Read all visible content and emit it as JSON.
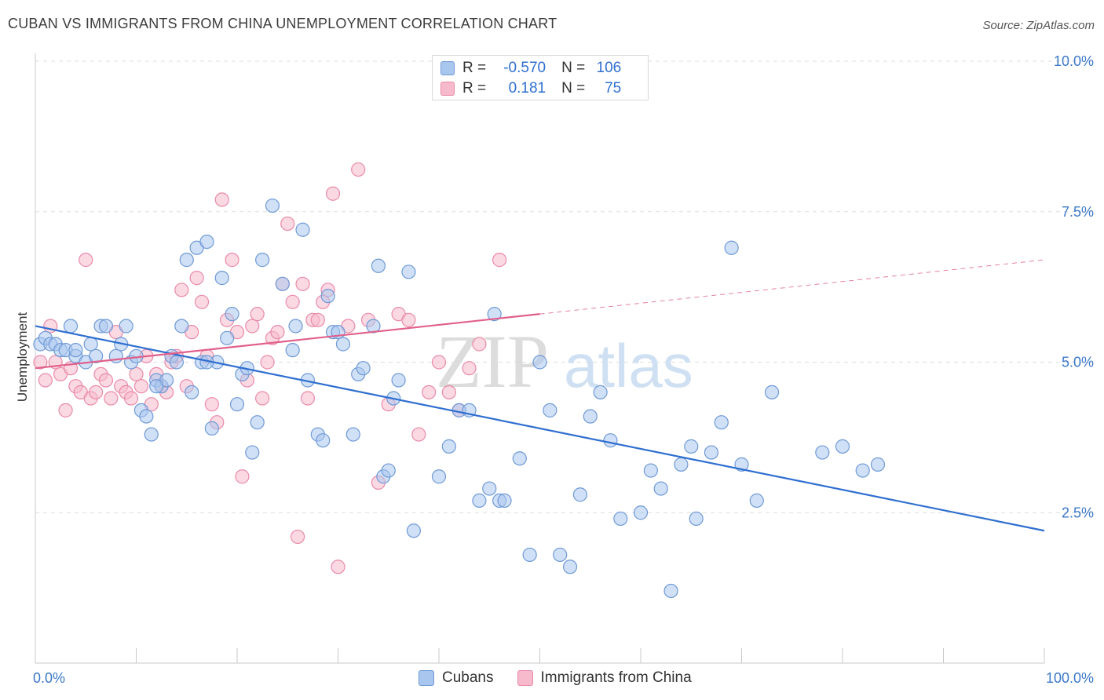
{
  "title": "CUBAN VS IMMIGRANTS FROM CHINA UNEMPLOYMENT CORRELATION CHART",
  "source": "Source: ZipAtlas.com",
  "watermark": {
    "zip": "ZIP",
    "atlas": "atlas"
  },
  "colors": {
    "cubans_fill": "#a9c6ee",
    "cubans_stroke": "#6f9ad6",
    "cubans_line": "#2f6fd0",
    "china_fill": "#f7b9cc",
    "china_stroke": "#e98aa9",
    "china_line": "#e0608c",
    "tick_text": "#3b78c8",
    "grid": "#dddddd"
  },
  "stats": {
    "rows": [
      {
        "series": "Cubans",
        "r_label": "R =",
        "r_value": "-0.570",
        "n_label": "N =",
        "n_value": "106"
      },
      {
        "series": "Immigrants from China",
        "r_label": "R =",
        "r_value": "0.181",
        "n_label": "N =",
        "n_value": "75"
      }
    ]
  },
  "chart_data": {
    "type": "scatter",
    "title": "CUBAN VS IMMIGRANTS FROM CHINA UNEMPLOYMENT CORRELATION CHART",
    "xlabel": "",
    "ylabel": "Unemployment",
    "xlim": [
      0,
      100
    ],
    "ylim": [
      0,
      10
    ],
    "x_tick_labels": [
      "0.0%",
      "100.0%"
    ],
    "y_ticks": [
      2.5,
      5.0,
      7.5,
      10.0
    ],
    "y_tick_labels": [
      "2.5%",
      "5.0%",
      "7.5%",
      "10.0%"
    ],
    "grid": true,
    "legend_position": "bottom-center",
    "series": [
      {
        "name": "Cubans",
        "color": "#a9c6ee",
        "trend": {
          "x": [
            0,
            100
          ],
          "y": [
            5.6,
            2.2
          ],
          "dashed_after": null
        },
        "points": [
          [
            0.5,
            5.3
          ],
          [
            1.0,
            5.4
          ],
          [
            1.5,
            5.3
          ],
          [
            2.0,
            5.3
          ],
          [
            2.5,
            5.2
          ],
          [
            3.0,
            5.2
          ],
          [
            3.5,
            5.6
          ],
          [
            4.0,
            5.1
          ],
          [
            5.0,
            5.0
          ],
          [
            5.5,
            5.3
          ],
          [
            6.0,
            5.1
          ],
          [
            6.5,
            5.6
          ],
          [
            7.0,
            5.6
          ],
          [
            8.0,
            5.1
          ],
          [
            8.5,
            5.3
          ],
          [
            9.0,
            5.6
          ],
          [
            9.5,
            5.0
          ],
          [
            10.0,
            5.1
          ],
          [
            10.5,
            4.2
          ],
          [
            11.0,
            4.1
          ],
          [
            11.5,
            3.8
          ],
          [
            12.0,
            4.7
          ],
          [
            12.5,
            4.6
          ],
          [
            13.0,
            4.7
          ],
          [
            13.5,
            5.1
          ],
          [
            14.0,
            5.0
          ],
          [
            14.5,
            5.6
          ],
          [
            15.0,
            6.7
          ],
          [
            15.5,
            4.5
          ],
          [
            16.0,
            6.9
          ],
          [
            16.5,
            5.0
          ],
          [
            17.0,
            7.0
          ],
          [
            17.5,
            3.9
          ],
          [
            18.0,
            5.0
          ],
          [
            18.5,
            6.4
          ],
          [
            19.0,
            5.4
          ],
          [
            19.5,
            5.8
          ],
          [
            20.0,
            4.3
          ],
          [
            20.5,
            4.8
          ],
          [
            21.0,
            4.9
          ],
          [
            21.5,
            3.5
          ],
          [
            22.0,
            4.0
          ],
          [
            22.5,
            6.7
          ],
          [
            23.5,
            7.6
          ],
          [
            24.5,
            6.3
          ],
          [
            25.5,
            5.2
          ],
          [
            25.8,
            5.6
          ],
          [
            26.5,
            7.2
          ],
          [
            27.0,
            4.7
          ],
          [
            28.0,
            3.8
          ],
          [
            28.5,
            3.7
          ],
          [
            29.0,
            6.1
          ],
          [
            29.5,
            5.5
          ],
          [
            30.0,
            5.5
          ],
          [
            30.5,
            5.3
          ],
          [
            31.5,
            3.8
          ],
          [
            32.0,
            4.8
          ],
          [
            32.5,
            4.9
          ],
          [
            33.5,
            5.6
          ],
          [
            34.0,
            6.6
          ],
          [
            34.5,
            3.1
          ],
          [
            35.0,
            3.2
          ],
          [
            35.5,
            4.4
          ],
          [
            36.0,
            4.7
          ],
          [
            37.0,
            6.5
          ],
          [
            37.5,
            2.2
          ],
          [
            40.0,
            3.1
          ],
          [
            41.0,
            3.6
          ],
          [
            42.0,
            4.2
          ],
          [
            43.0,
            4.2
          ],
          [
            44.0,
            2.7
          ],
          [
            45.0,
            2.9
          ],
          [
            45.5,
            5.8
          ],
          [
            46.0,
            2.7
          ],
          [
            46.5,
            2.7
          ],
          [
            48.0,
            3.4
          ],
          [
            49.0,
            1.8
          ],
          [
            50.0,
            5.0
          ],
          [
            51.0,
            4.2
          ],
          [
            52.0,
            1.8
          ],
          [
            53.0,
            1.6
          ],
          [
            54.0,
            2.8
          ],
          [
            55.0,
            4.1
          ],
          [
            56.0,
            4.5
          ],
          [
            57.0,
            3.7
          ],
          [
            58.0,
            2.4
          ],
          [
            60.0,
            2.5
          ],
          [
            61.0,
            3.2
          ],
          [
            62.0,
            2.9
          ],
          [
            63.0,
            1.2
          ],
          [
            64.0,
            3.3
          ],
          [
            65.0,
            3.6
          ],
          [
            65.5,
            2.4
          ],
          [
            67.0,
            3.5
          ],
          [
            68.0,
            4.0
          ],
          [
            69.0,
            6.9
          ],
          [
            70.0,
            3.3
          ],
          [
            71.5,
            2.7
          ],
          [
            73.0,
            4.5
          ],
          [
            78.0,
            3.5
          ],
          [
            80.0,
            3.6
          ],
          [
            82.0,
            3.2
          ],
          [
            83.5,
            3.3
          ],
          [
            4.0,
            5.2
          ],
          [
            12.0,
            4.6
          ],
          [
            17.0,
            5.0
          ]
        ]
      },
      {
        "name": "Immigrants from China",
        "color": "#f7b9cc",
        "trend": {
          "x": [
            0,
            50
          ],
          "y": [
            4.9,
            5.8
          ],
          "dashed_after": 50,
          "dashed_end": [
            100,
            6.7
          ]
        },
        "points": [
          [
            0.5,
            5.0
          ],
          [
            1.0,
            4.7
          ],
          [
            1.5,
            5.6
          ],
          [
            2.0,
            5.0
          ],
          [
            2.5,
            4.8
          ],
          [
            3.0,
            4.2
          ],
          [
            3.5,
            4.9
          ],
          [
            4.0,
            4.6
          ],
          [
            4.5,
            4.5
          ],
          [
            5.0,
            6.7
          ],
          [
            5.5,
            4.4
          ],
          [
            6.0,
            4.5
          ],
          [
            6.5,
            4.8
          ],
          [
            7.0,
            4.7
          ],
          [
            7.5,
            4.4
          ],
          [
            8.0,
            5.5
          ],
          [
            8.5,
            4.6
          ],
          [
            9.0,
            4.5
          ],
          [
            9.5,
            4.4
          ],
          [
            10.0,
            4.8
          ],
          [
            10.5,
            4.6
          ],
          [
            11.0,
            5.1
          ],
          [
            11.5,
            4.3
          ],
          [
            12.0,
            4.8
          ],
          [
            12.5,
            4.6
          ],
          [
            13.0,
            4.5
          ],
          [
            13.5,
            5.0
          ],
          [
            14.0,
            5.1
          ],
          [
            14.5,
            6.2
          ],
          [
            15.0,
            4.6
          ],
          [
            15.5,
            5.5
          ],
          [
            16.0,
            6.4
          ],
          [
            16.5,
            6.0
          ],
          [
            17.0,
            5.1
          ],
          [
            17.5,
            4.3
          ],
          [
            18.0,
            4.0
          ],
          [
            18.5,
            7.7
          ],
          [
            19.0,
            5.7
          ],
          [
            19.5,
            6.7
          ],
          [
            20.0,
            5.5
          ],
          [
            20.5,
            3.1
          ],
          [
            21.0,
            4.7
          ],
          [
            21.5,
            5.6
          ],
          [
            22.0,
            5.8
          ],
          [
            22.5,
            4.4
          ],
          [
            23.0,
            5.0
          ],
          [
            23.5,
            5.4
          ],
          [
            24.0,
            5.5
          ],
          [
            24.5,
            6.3
          ],
          [
            25.0,
            7.3
          ],
          [
            25.5,
            6.0
          ],
          [
            26.0,
            2.1
          ],
          [
            26.5,
            6.3
          ],
          [
            27.0,
            4.4
          ],
          [
            27.5,
            5.7
          ],
          [
            28.0,
            5.7
          ],
          [
            28.5,
            6.0
          ],
          [
            29.0,
            6.2
          ],
          [
            29.5,
            7.8
          ],
          [
            30.0,
            1.6
          ],
          [
            31.0,
            5.6
          ],
          [
            32.0,
            8.2
          ],
          [
            33.0,
            5.7
          ],
          [
            34.0,
            3.0
          ],
          [
            35.0,
            4.3
          ],
          [
            36.0,
            5.8
          ],
          [
            37.0,
            5.7
          ],
          [
            38.0,
            3.8
          ],
          [
            39.0,
            4.5
          ],
          [
            40.0,
            5.0
          ],
          [
            41.0,
            4.5
          ],
          [
            42.0,
            4.2
          ],
          [
            43.0,
            4.9
          ],
          [
            44.0,
            5.3
          ],
          [
            46.0,
            6.7
          ]
        ]
      }
    ]
  },
  "legend": {
    "items": [
      {
        "label": "Cubans"
      },
      {
        "label": "Immigrants from China"
      }
    ]
  }
}
